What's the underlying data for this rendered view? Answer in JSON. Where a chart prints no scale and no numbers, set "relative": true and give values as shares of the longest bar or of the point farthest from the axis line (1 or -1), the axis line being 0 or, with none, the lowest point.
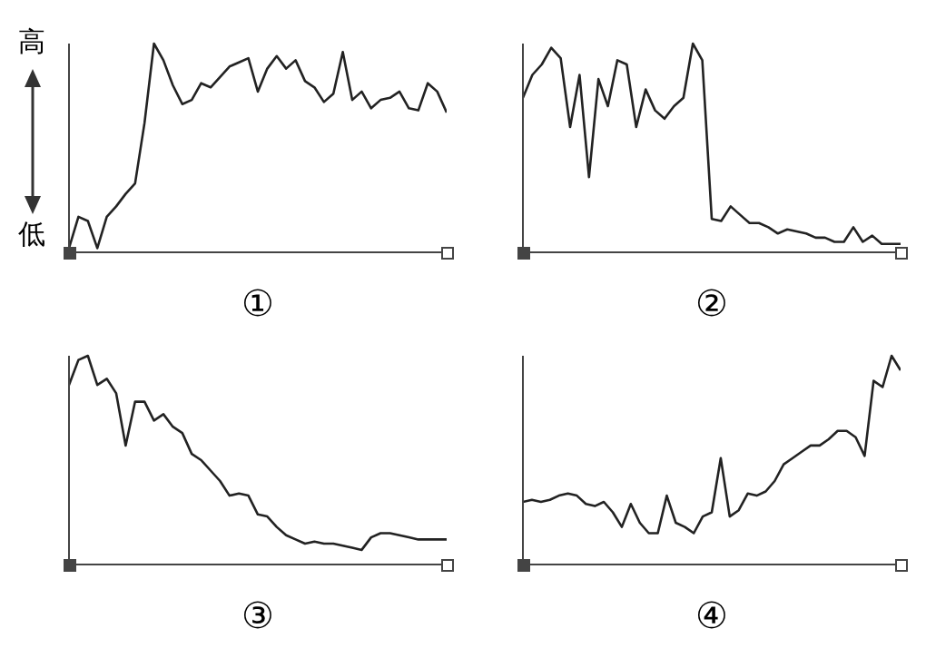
{
  "chart_data": [
    {
      "type": "line",
      "relative": true,
      "xlabel": "①",
      "annotations": [
        "高",
        "低"
      ],
      "categories": [
        null,
        null,
        null,
        null,
        null,
        null,
        null,
        null,
        null,
        null,
        null,
        null,
        null,
        null,
        null,
        null,
        null,
        null,
        null,
        null,
        null,
        null,
        null,
        null,
        null,
        null,
        null,
        null,
        null,
        null,
        null,
        null,
        null,
        null,
        null,
        null,
        null,
        null,
        null,
        null,
        null
      ],
      "series": [
        {
          "color": "#222222",
          "values": [
            0.02,
            0.17,
            0.15,
            0.02,
            0.17,
            0.22,
            0.28,
            0.33,
            0.62,
            1.0,
            0.92,
            0.8,
            0.71,
            0.73,
            0.81,
            0.79,
            0.84,
            0.89,
            0.91,
            0.93,
            0.77,
            0.88,
            0.94,
            0.88,
            0.92,
            0.82,
            0.79,
            0.72,
            0.76,
            0.96,
            0.73,
            0.77,
            0.69,
            0.73,
            0.74,
            0.77,
            0.69,
            0.68,
            0.81,
            0.77,
            0.67
          ]
        }
      ]
    },
    {
      "type": "line",
      "relative": true,
      "xlabel": "②",
      "categories": [
        null,
        null,
        null,
        null,
        null,
        null,
        null,
        null,
        null,
        null,
        null,
        null,
        null,
        null,
        null,
        null,
        null,
        null,
        null,
        null,
        null,
        null,
        null,
        null,
        null,
        null,
        null,
        null,
        null,
        null,
        null,
        null,
        null,
        null,
        null,
        null,
        null,
        null,
        null,
        null,
        null
      ],
      "series": [
        {
          "color": "#222222",
          "values": [
            0.74,
            0.85,
            0.9,
            0.98,
            0.93,
            0.6,
            0.85,
            0.36,
            0.83,
            0.7,
            0.92,
            0.9,
            0.6,
            0.78,
            0.68,
            0.64,
            0.7,
            0.74,
            1.0,
            0.92,
            0.16,
            0.15,
            0.22,
            0.18,
            0.14,
            0.14,
            0.12,
            0.09,
            0.11,
            0.1,
            0.09,
            0.07,
            0.07,
            0.05,
            0.05,
            0.12,
            0.05,
            0.08,
            0.04,
            0.04,
            0.04
          ]
        }
      ]
    },
    {
      "type": "line",
      "relative": true,
      "xlabel": "③",
      "categories": [
        null,
        null,
        null,
        null,
        null,
        null,
        null,
        null,
        null,
        null,
        null,
        null,
        null,
        null,
        null,
        null,
        null,
        null,
        null,
        null,
        null,
        null,
        null,
        null,
        null,
        null,
        null,
        null,
        null,
        null,
        null,
        null,
        null,
        null,
        null,
        null,
        null,
        null,
        null,
        null,
        null
      ],
      "series": [
        {
          "color": "#222222",
          "values": [
            0.86,
            0.98,
            1.0,
            0.86,
            0.89,
            0.82,
            0.57,
            0.78,
            0.78,
            0.69,
            0.72,
            0.66,
            0.63,
            0.53,
            0.5,
            0.45,
            0.4,
            0.33,
            0.34,
            0.33,
            0.24,
            0.23,
            0.18,
            0.14,
            0.12,
            0.1,
            0.11,
            0.1,
            0.1,
            0.09,
            0.08,
            0.07,
            0.13,
            0.15,
            0.15,
            0.14,
            0.13,
            0.12,
            0.12,
            0.12,
            0.12
          ]
        }
      ]
    },
    {
      "type": "line",
      "relative": true,
      "xlabel": "④",
      "categories": [
        null,
        null,
        null,
        null,
        null,
        null,
        null,
        null,
        null,
        null,
        null,
        null,
        null,
        null,
        null,
        null,
        null,
        null,
        null,
        null,
        null,
        null,
        null,
        null,
        null,
        null,
        null,
        null,
        null,
        null,
        null,
        null,
        null,
        null,
        null,
        null,
        null,
        null,
        null,
        null,
        null,
        null,
        null
      ],
      "series": [
        {
          "color": "#222222",
          "values": [
            0.3,
            0.31,
            0.3,
            0.31,
            0.33,
            0.34,
            0.33,
            0.29,
            0.28,
            0.3,
            0.25,
            0.18,
            0.29,
            0.2,
            0.15,
            0.15,
            0.33,
            0.2,
            0.18,
            0.15,
            0.23,
            0.25,
            0.51,
            0.23,
            0.26,
            0.34,
            0.33,
            0.35,
            0.4,
            0.48,
            0.51,
            0.54,
            0.57,
            0.57,
            0.6,
            0.64,
            0.64,
            0.61,
            0.52,
            0.88,
            0.85,
            1.0,
            0.93
          ]
        }
      ]
    }
  ]
}
